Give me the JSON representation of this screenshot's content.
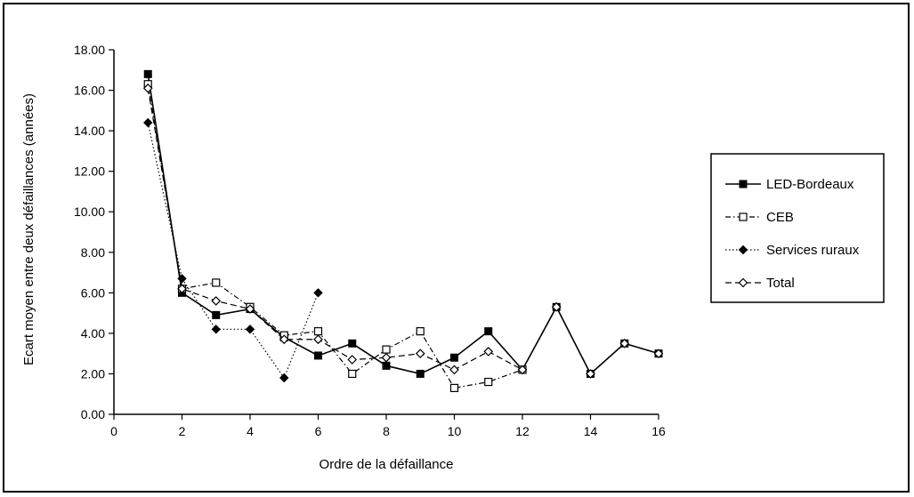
{
  "chart_data": {
    "type": "line",
    "title": "",
    "xlabel": "Ordre de la défaillance",
    "ylabel": "Ecart moyen entre deux défaillances (années)",
    "xlim": [
      0,
      16
    ],
    "ylim": [
      0,
      18
    ],
    "x_ticks": [
      0,
      2,
      4,
      6,
      8,
      10,
      12,
      14,
      16
    ],
    "y_ticks": [
      "0.00",
      "2.00",
      "4.00",
      "6.00",
      "8.00",
      "10.00",
      "12.00",
      "14.00",
      "16.00",
      "18.00"
    ],
    "grid": false,
    "legend_position": "right",
    "series": [
      {
        "name": "LED-Bordeaux",
        "line_style": "solid",
        "marker": "filled-square",
        "color": "#000000",
        "x": [
          1,
          2,
          3,
          4,
          5,
          6,
          7,
          8,
          9,
          10,
          11,
          12,
          13,
          14,
          15,
          16
        ],
        "y": [
          16.8,
          6.0,
          4.9,
          5.2,
          3.8,
          2.9,
          3.5,
          2.4,
          2.0,
          2.8,
          4.1,
          2.2,
          5.3,
          2.0,
          3.5,
          3.0
        ]
      },
      {
        "name": "CEB",
        "line_style": "dash-dot",
        "marker": "open-square",
        "color": "#000000",
        "x": [
          1,
          2,
          3,
          4,
          5,
          6,
          7,
          8,
          9,
          10,
          11,
          12
        ],
        "y": [
          16.3,
          6.2,
          6.5,
          5.3,
          3.9,
          4.1,
          2.0,
          3.2,
          4.1,
          1.3,
          1.6,
          2.2
        ]
      },
      {
        "name": "Services ruraux",
        "line_style": "dotted",
        "marker": "filled-diamond",
        "color": "#000000",
        "x": [
          1,
          2,
          3,
          4,
          5,
          6
        ],
        "y": [
          14.4,
          6.7,
          4.2,
          4.2,
          1.8,
          6.0
        ]
      },
      {
        "name": "Total",
        "line_style": "dashed",
        "marker": "open-diamond",
        "color": "#000000",
        "x": [
          1,
          2,
          3,
          4,
          5,
          6,
          7,
          8,
          9,
          10,
          11,
          12,
          13,
          14,
          15,
          16
        ],
        "y": [
          16.1,
          6.2,
          5.6,
          5.2,
          3.7,
          3.7,
          2.7,
          2.8,
          3.0,
          2.2,
          3.1,
          2.2,
          5.3,
          2.0,
          3.5,
          3.0
        ]
      }
    ]
  }
}
